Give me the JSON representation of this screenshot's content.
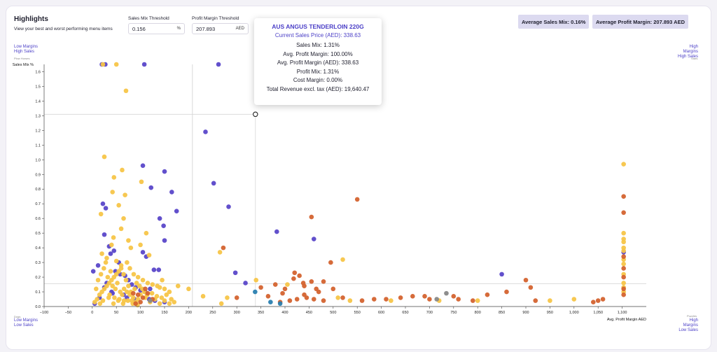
{
  "header": {
    "title": "Highlights",
    "subtitle": "View your best and worst performing menu items"
  },
  "thresholds": {
    "sales_mix_label": "Sales Mix Threshold",
    "sales_mix_value": "0.156",
    "sales_mix_unit": "%",
    "profit_margin_label": "Profit Margin Threshold",
    "profit_margin_value": "207.893",
    "profit_margin_unit": "AED"
  },
  "badges": {
    "avg_sales_mix": "Average Sales Mix: 0.16%",
    "avg_profit_margin": "Average Profit Margin: 207.893 AED"
  },
  "quadrants": {
    "top_left_line1": "Low Margins",
    "top_left_line2": "High Sales",
    "top_left_tag": "Plow Horses",
    "top_right_line1": "High Margins",
    "top_right_line2": "High Sales",
    "top_right_tag": "Stars",
    "bottom_left_tag": "Dogs",
    "bottom_left_line1": "Low Margins",
    "bottom_left_line2": "Low Sales",
    "bottom_right_tag": "Puzzles",
    "bottom_right_line1": "High Margins",
    "bottom_right_line2": "Low Sales"
  },
  "tooltip": {
    "title": "AUS ANGUS TENDERLOIN 220G",
    "price": "Current Sales Price (AED): 338.63",
    "lines": [
      "Sales Mix: 1.31%",
      "Avg. Profit Margin: 100.00%",
      "Avg. Profit Margin (AED): 338.63",
      "Profit Mix: 1.31%",
      "Cost Margin: 0.00%",
      "Total Revenue excl. tax (AED): 19,640.47"
    ]
  },
  "colors": {
    "stars": "#5a47c9",
    "plow": "#f7c548",
    "puzzles": "#d4632f",
    "dogs": "#f7c548",
    "grey": "#888888",
    "teal": "#2a7fb0",
    "accent": "#4b3fc7"
  },
  "chart_data": {
    "type": "scatter",
    "title": "",
    "xlabel": "Avg. Profit Margin AED",
    "ylabel": "Sales Mix %",
    "xlim": [
      -100,
      1150
    ],
    "ylim": [
      0,
      1.65
    ],
    "x_ticks": [
      -100,
      -50,
      0,
      50,
      100,
      150,
      200,
      250,
      300,
      350,
      400,
      450,
      500,
      550,
      600,
      650,
      700,
      750,
      800,
      850,
      900,
      950,
      1000,
      1050,
      1100
    ],
    "x_tick_labels": [
      "−100",
      "−50",
      "0",
      "50",
      "100",
      "150",
      "200",
      "250",
      "300",
      "350",
      "400",
      "450",
      "500",
      "550",
      "600",
      "650",
      "700",
      "750",
      "800",
      "850",
      "900",
      "950",
      "1,000",
      "1,050",
      "1,100"
    ],
    "y_ticks": [
      0,
      0.1,
      0.2,
      0.3,
      0.4,
      0.5,
      0.6,
      0.7,
      0.8,
      0.9,
      1.0,
      1.1,
      1.2,
      1.3,
      1.4,
      1.5,
      1.6
    ],
    "y_tick_labels": [
      "0.0",
      "0.1",
      "0.2",
      "0.3",
      "0.4",
      "0.5",
      "0.6",
      "0.7",
      "0.8",
      "0.9",
      "1.0",
      "1.1",
      "1.2",
      "1.3",
      "1.4",
      "1.5",
      "1.6"
    ],
    "threshold_x": 207.893,
    "threshold_y": 0.156,
    "highlight": {
      "x": 338.63,
      "y": 1.31
    },
    "series": [
      {
        "name": "purple",
        "color_key": "stars",
        "points": [
          [
            20,
            1.67
          ],
          [
            27,
            1.67
          ],
          [
            108,
            1.67
          ],
          [
            262,
            1.67
          ],
          [
            235,
            1.19
          ],
          [
            252,
            0.84
          ],
          [
            283,
            0.68
          ],
          [
            383,
            0.51
          ],
          [
            460,
            0.46
          ],
          [
            297,
            0.23
          ],
          [
            318,
            0.16
          ],
          [
            850,
            0.22
          ],
          [
            1103,
            0.37
          ],
          [
            105,
            0.96
          ],
          [
            150,
            0.92
          ],
          [
            122,
            0.81
          ],
          [
            165,
            0.78
          ],
          [
            22,
            0.7
          ],
          [
            28,
            0.67
          ],
          [
            175,
            0.65
          ],
          [
            140,
            0.6
          ],
          [
            148,
            0.55
          ],
          [
            150,
            0.45
          ],
          [
            25,
            0.49
          ],
          [
            35,
            0.41
          ],
          [
            38,
            0.36
          ],
          [
            2,
            0.24
          ],
          [
            12,
            0.28
          ],
          [
            48,
            0.24
          ],
          [
            58,
            0.22
          ],
          [
            68,
            0.21
          ],
          [
            75,
            0.18
          ],
          [
            82,
            0.15
          ],
          [
            90,
            0.13
          ],
          [
            100,
            0.11
          ],
          [
            110,
            0.1
          ],
          [
            128,
            0.25
          ],
          [
            138,
            0.25
          ],
          [
            25,
            0.13
          ],
          [
            40,
            0.1
          ],
          [
            65,
            0.08
          ],
          [
            72,
            0.06
          ],
          [
            88,
            0.05
          ],
          [
            118,
            0.05
          ],
          [
            130,
            0.04
          ],
          [
            150,
            0.03
          ],
          [
            5,
            0.02
          ],
          [
            15,
            0.06
          ],
          [
            30,
            0.16
          ],
          [
            45,
            0.38
          ],
          [
            105,
            0.37
          ],
          [
            112,
            0.34
          ],
          [
            120,
            0.12
          ],
          [
            55,
            0.3
          ],
          [
            42,
            0.09
          ]
        ]
      },
      {
        "name": "yellow",
        "color_key": "plow",
        "points": [
          [
            22,
            1.67
          ],
          [
            50,
            1.67
          ],
          [
            70,
            1.47
          ],
          [
            25,
            1.02
          ],
          [
            62,
            0.93
          ],
          [
            45,
            0.88
          ],
          [
            102,
            0.85
          ],
          [
            42,
            0.78
          ],
          [
            68,
            0.76
          ],
          [
            55,
            0.69
          ],
          [
            18,
            0.63
          ],
          [
            65,
            0.6
          ],
          [
            60,
            0.53
          ],
          [
            112,
            0.5
          ],
          [
            40,
            0.42
          ],
          [
            44,
            0.47
          ],
          [
            75,
            0.45
          ],
          [
            80,
            0.4
          ],
          [
            100,
            0.42
          ],
          [
            118,
            0.35
          ],
          [
            20,
            0.36
          ],
          [
            30,
            0.33
          ],
          [
            50,
            0.31
          ],
          [
            60,
            0.28
          ],
          [
            72,
            0.3
          ],
          [
            78,
            0.26
          ],
          [
            86,
            0.22
          ],
          [
            95,
            0.2
          ],
          [
            105,
            0.18
          ],
          [
            115,
            0.16
          ],
          [
            125,
            0.15
          ],
          [
            135,
            0.14
          ],
          [
            140,
            0.13
          ],
          [
            150,
            0.12
          ],
          [
            160,
            0.1
          ],
          [
            178,
            0.14
          ],
          [
            200,
            0.12
          ],
          [
            265,
            0.37
          ],
          [
            268,
            0.02
          ],
          [
            280,
            0.06
          ],
          [
            230,
            0.07
          ],
          [
            340,
            0.18
          ],
          [
            405,
            0.15
          ],
          [
            510,
            0.06
          ],
          [
            520,
            0.32
          ],
          [
            535,
            0.04
          ],
          [
            620,
            0.04
          ],
          [
            720,
            0.04
          ],
          [
            800,
            0.04
          ],
          [
            950,
            0.04
          ],
          [
            1000,
            0.05
          ],
          [
            1103,
            0.5
          ],
          [
            1103,
            0.46
          ],
          [
            1103,
            0.44
          ],
          [
            1103,
            0.4
          ],
          [
            1103,
            0.38
          ],
          [
            1103,
            0.32
          ],
          [
            1103,
            0.29
          ],
          [
            1103,
            0.22
          ],
          [
            1103,
            0.16
          ],
          [
            1103,
            0.13
          ],
          [
            1103,
            0.1
          ],
          [
            1103,
            0.97
          ],
          [
            5,
            0.03
          ],
          [
            10,
            0.05
          ],
          [
            15,
            0.08
          ],
          [
            20,
            0.1
          ],
          [
            25,
            0.12
          ],
          [
            30,
            0.14
          ],
          [
            35,
            0.16
          ],
          [
            40,
            0.18
          ],
          [
            45,
            0.2
          ],
          [
            50,
            0.22
          ],
          [
            55,
            0.24
          ],
          [
            60,
            0.26
          ],
          [
            65,
            0.22
          ],
          [
            70,
            0.18
          ],
          [
            75,
            0.14
          ],
          [
            80,
            0.1
          ],
          [
            85,
            0.06
          ],
          [
            90,
            0.03
          ],
          [
            95,
            0.05
          ],
          [
            100,
            0.08
          ],
          [
            110,
            0.06
          ],
          [
            120,
            0.03
          ],
          [
            130,
            0.05
          ],
          [
            140,
            0.02
          ],
          [
            150,
            0.04
          ],
          [
            160,
            0.02
          ],
          [
            170,
            0.03
          ],
          [
            12,
            0.18
          ],
          [
            18,
            0.22
          ],
          [
            24,
            0.26
          ],
          [
            28,
            0.3
          ],
          [
            32,
            0.2
          ],
          [
            38,
            0.24
          ],
          [
            42,
            0.14
          ],
          [
            48,
            0.12
          ],
          [
            52,
            0.16
          ],
          [
            58,
            0.1
          ],
          [
            62,
            0.08
          ],
          [
            66,
            0.12
          ],
          [
            72,
            0.1
          ],
          [
            78,
            0.08
          ],
          [
            82,
            0.04
          ],
          [
            88,
            0.12
          ],
          [
            92,
            0.16
          ],
          [
            98,
            0.14
          ],
          [
            104,
            0.12
          ],
          [
            108,
            0.1
          ],
          [
            114,
            0.08
          ],
          [
            124,
            0.09
          ],
          [
            134,
            0.07
          ],
          [
            144,
            0.06
          ],
          [
            154,
            0.08
          ],
          [
            164,
            0.05
          ],
          [
            145,
            0.18
          ],
          [
            8,
            0.12
          ],
          [
            16,
            0.02
          ],
          [
            22,
            0.04
          ],
          [
            34,
            0.06
          ],
          [
            44,
            0.02
          ],
          [
            54,
            0.04
          ],
          [
            64,
            0.02
          ],
          [
            74,
            0.04
          ],
          [
            84,
            0.02
          ],
          [
            94,
            0.01
          ],
          [
            36,
            0.08
          ],
          [
            46,
            0.06
          ],
          [
            56,
            0.05
          ],
          [
            66,
            0.04
          ]
        ]
      },
      {
        "name": "orange",
        "color_key": "puzzles",
        "points": [
          [
            272,
            0.4
          ],
          [
            455,
            0.61
          ],
          [
            550,
            0.73
          ],
          [
            495,
            0.3
          ],
          [
            420,
            0.23
          ],
          [
            438,
            0.16
          ],
          [
            470,
            0.1
          ],
          [
            455,
            0.17
          ],
          [
            380,
            0.15
          ],
          [
            400,
            0.12
          ],
          [
            418,
            0.19
          ],
          [
            430,
            0.21
          ],
          [
            390,
            0.03
          ],
          [
            410,
            0.04
          ],
          [
            440,
            0.08
          ],
          [
            460,
            0.05
          ],
          [
            480,
            0.04
          ],
          [
            500,
            0.12
          ],
          [
            560,
            0.04
          ],
          [
            585,
            0.05
          ],
          [
            610,
            0.05
          ],
          [
            640,
            0.06
          ],
          [
            665,
            0.07
          ],
          [
            690,
            0.07
          ],
          [
            700,
            0.05
          ],
          [
            750,
            0.07
          ],
          [
            760,
            0.05
          ],
          [
            790,
            0.04
          ],
          [
            820,
            0.08
          ],
          [
            860,
            0.1
          ],
          [
            900,
            0.18
          ],
          [
            910,
            0.13
          ],
          [
            920,
            0.04
          ],
          [
            1060,
            0.05
          ],
          [
            1103,
            0.75
          ],
          [
            1103,
            0.64
          ],
          [
            1103,
            0.34
          ],
          [
            1103,
            0.26
          ],
          [
            1103,
            0.2
          ],
          [
            1103,
            0.12
          ],
          [
            1103,
            0.08
          ],
          [
            300,
            0.06
          ],
          [
            350,
            0.13
          ],
          [
            365,
            0.07
          ],
          [
            395,
            0.09
          ],
          [
            425,
            0.05
          ],
          [
            445,
            0.06
          ],
          [
            465,
            0.12
          ],
          [
            95,
            0.08
          ],
          [
            105,
            0.06
          ],
          [
            115,
            0.09
          ],
          [
            125,
            0.05
          ],
          [
            90,
            0.02
          ],
          [
            100,
            0.03
          ],
          [
            110,
            0.12
          ],
          [
            85,
            0.09
          ],
          [
            440,
            0.14
          ],
          [
            480,
            0.17
          ],
          [
            520,
            0.06
          ],
          [
            1040,
            0.03
          ],
          [
            1050,
            0.04
          ]
        ]
      },
      {
        "name": "grey",
        "color_key": "grey",
        "points": [
          [
            735,
            0.09
          ],
          [
            715,
            0.05
          ],
          [
            120,
            0.04
          ]
        ]
      },
      {
        "name": "teal",
        "color_key": "teal",
        "points": [
          [
            338,
            0.1
          ],
          [
            390,
            0.02
          ],
          [
            370,
            0.03
          ]
        ]
      }
    ]
  }
}
